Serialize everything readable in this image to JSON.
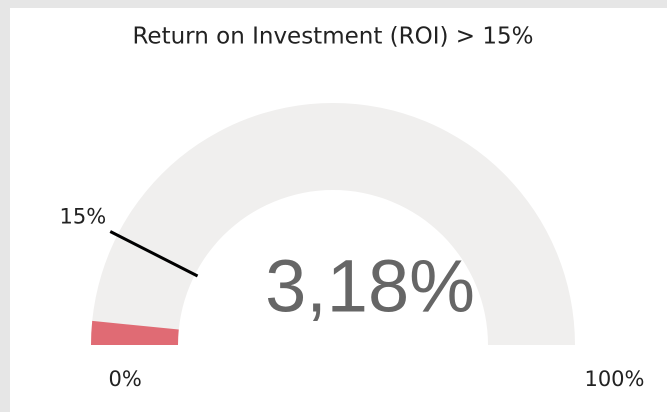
{
  "chart_data": {
    "type": "gauge",
    "title": "Return on Investment (ROI) > 15%",
    "value": 3.18,
    "value_label": "3,18%",
    "color": "#e06b74",
    "track_color": "#f0efee",
    "ylim": [
      0,
      100
    ],
    "yticks": [
      {
        "value": 0,
        "label": "0%"
      },
      {
        "value": 100,
        "label": "100%"
      }
    ],
    "target": {
      "value": 15,
      "label": "15%"
    },
    "target_color": "#000000"
  }
}
